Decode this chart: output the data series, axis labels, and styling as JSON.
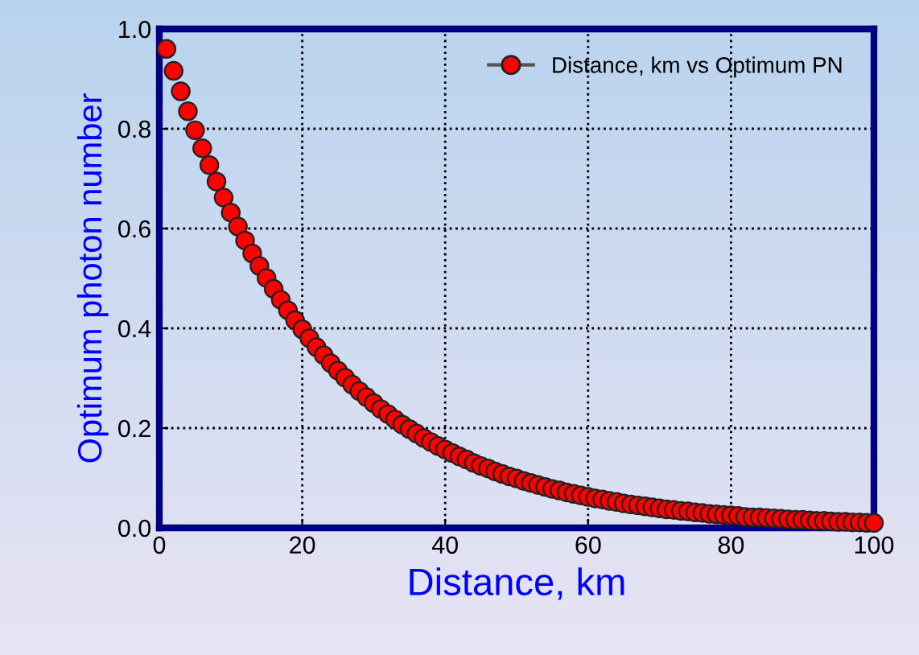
{
  "chart_data": {
    "type": "scatter",
    "xlabel": "Distance, km",
    "ylabel": "Optimum photon number",
    "x": [
      1,
      2,
      3,
      4,
      5,
      6,
      7,
      8,
      9,
      10,
      11,
      12,
      13,
      14,
      15,
      16,
      17,
      18,
      19,
      20,
      21,
      22,
      23,
      24,
      25,
      26,
      27,
      28,
      29,
      30,
      31,
      32,
      33,
      34,
      35,
      36,
      37,
      38,
      39,
      40,
      41,
      42,
      43,
      44,
      45,
      46,
      47,
      48,
      49,
      50,
      51,
      52,
      53,
      54,
      55,
      56,
      57,
      58,
      59,
      60,
      61,
      62,
      63,
      64,
      65,
      66,
      67,
      68,
      69,
      70,
      71,
      72,
      73,
      74,
      75,
      76,
      77,
      78,
      79,
      80,
      81,
      82,
      83,
      84,
      85,
      86,
      87,
      88,
      89,
      90,
      91,
      92,
      93,
      94,
      95,
      96,
      97,
      98,
      99,
      100
    ],
    "series": [
      {
        "name": "Distance, km vs Optimum PN",
        "color": "#ff0000",
        "values": [
          0.96,
          0.916,
          0.875,
          0.835,
          0.797,
          0.761,
          0.727,
          0.694,
          0.662,
          0.632,
          0.604,
          0.576,
          0.55,
          0.525,
          0.501,
          0.479,
          0.457,
          0.436,
          0.416,
          0.398,
          0.38,
          0.362,
          0.346,
          0.33,
          0.315,
          0.301,
          0.287,
          0.274,
          0.262,
          0.25,
          0.238,
          0.228,
          0.217,
          0.207,
          0.198,
          0.189,
          0.18,
          0.172,
          0.164,
          0.157,
          0.15,
          0.143,
          0.137,
          0.13,
          0.124,
          0.119,
          0.113,
          0.108,
          0.103,
          0.099,
          0.094,
          0.09,
          0.086,
          0.082,
          0.078,
          0.075,
          0.071,
          0.068,
          0.065,
          0.062,
          0.059,
          0.057,
          0.054,
          0.052,
          0.049,
          0.047,
          0.045,
          0.043,
          0.041,
          0.039,
          0.037,
          0.036,
          0.034,
          0.033,
          0.031,
          0.03,
          0.028,
          0.027,
          0.026,
          0.025,
          0.024,
          0.022,
          0.021,
          0.021,
          0.02,
          0.019,
          0.018,
          0.017,
          0.016,
          0.016,
          0.015,
          0.014,
          0.014,
          0.013,
          0.012,
          0.012,
          0.011,
          0.011,
          0.01,
          0.01
        ]
      }
    ],
    "xlim": [
      0,
      100
    ],
    "xticks": [
      0,
      20,
      40,
      60,
      80,
      100
    ],
    "ylim": [
      0,
      1.0
    ],
    "yticks": [
      {
        "value": 0,
        "label": "0.0"
      },
      {
        "value": 0.2,
        "label": "0.2"
      },
      {
        "value": 0.4,
        "label": "0.4"
      },
      {
        "value": 0.6,
        "label": "0.6"
      },
      {
        "value": 0.8,
        "label": "0.8"
      },
      {
        "value": 1.0,
        "label": "1.0"
      }
    ],
    "grid": true,
    "legend": "top right",
    "marker": "circle"
  }
}
